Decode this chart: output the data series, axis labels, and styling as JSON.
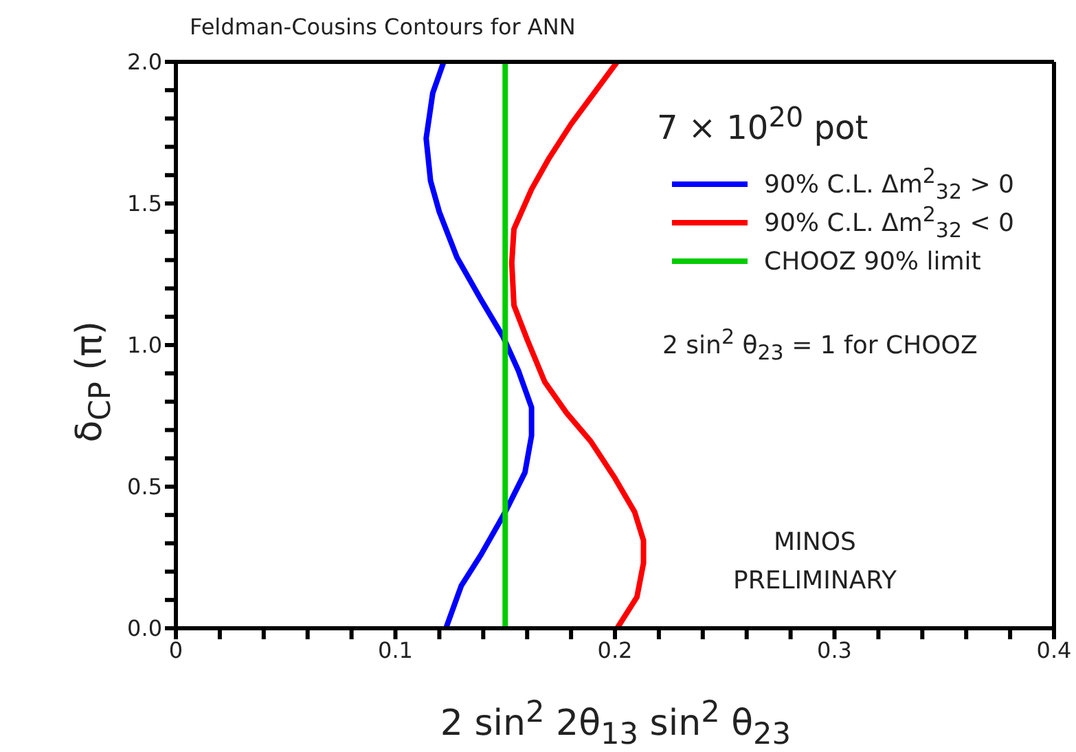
{
  "chart_data": {
    "type": "line",
    "title": "Feldman-Cousins Contours for ANN",
    "xlabel": "2 sin$^{2}$ 2θ$_{13}$ sin$^{2}$ θ$_{23}$",
    "ylabel": "δ$_{CP}$ (π)",
    "xlim": [
      0,
      0.4
    ],
    "ylim": [
      0,
      2
    ],
    "xticks": [
      {
        "value": 0,
        "label": "0"
      },
      {
        "value": 0.02,
        "label": null
      },
      {
        "value": 0.04,
        "label": null
      },
      {
        "value": 0.06,
        "label": null
      },
      {
        "value": 0.08,
        "label": null
      },
      0.1,
      {
        "value": 0.12,
        "label": null
      },
      {
        "value": 0.14,
        "label": null
      },
      {
        "value": 0.16,
        "label": null
      },
      {
        "value": 0.18,
        "label": null
      },
      0.2,
      {
        "value": 0.22,
        "label": null
      },
      {
        "value": 0.24,
        "label": null
      },
      {
        "value": 0.26,
        "label": null
      },
      {
        "value": 0.28,
        "label": null
      },
      0.3,
      {
        "value": 0.32,
        "label": null
      },
      {
        "value": 0.34,
        "label": null
      },
      {
        "value": 0.36,
        "label": null
      },
      {
        "value": 0.38,
        "label": null
      },
      0.4
    ],
    "yticks": [
      {
        "value": 0,
        "label": "0.0"
      },
      {
        "value": 0.1,
        "label": null
      },
      {
        "value": 0.2,
        "label": null
      },
      {
        "value": 0.3,
        "label": null
      },
      {
        "value": 0.4,
        "label": null
      },
      0.5,
      {
        "value": 0.6,
        "label": null
      },
      {
        "value": 0.7,
        "label": null
      },
      {
        "value": 0.8,
        "label": null
      },
      {
        "value": 0.9,
        "label": null
      },
      {
        "value": 1,
        "label": "1.0"
      },
      {
        "value": 1.1,
        "label": null
      },
      {
        "value": 1.2,
        "label": null
      },
      {
        "value": 1.3,
        "label": null
      },
      {
        "value": 1.4,
        "label": null
      },
      1.5,
      {
        "value": 1.6,
        "label": null
      },
      {
        "value": 1.7,
        "label": null
      },
      {
        "value": 1.8,
        "label": null
      },
      {
        "value": 1.9,
        "label": null
      },
      {
        "value": 2,
        "label": "2.0"
      }
    ],
    "legend": "top right",
    "line_style": "solid",
    "marker": "none",
    "series": [
      {
        "name": "90% C.L. Δm$^{2}$$_{32}$ > 0",
        "color": "#0000ff",
        "x": [
          0.122,
          0.117,
          0.114,
          0.116,
          0.12,
          0.128,
          0.139,
          0.149,
          0.156,
          0.162,
          0.162,
          0.159,
          0.15,
          0.139,
          0.13,
          0.123
        ],
        "values": [
          2,
          1.89,
          1.73,
          1.58,
          1.47,
          1.31,
          1.16,
          1.03,
          0.91,
          0.78,
          0.68,
          0.55,
          0.41,
          0.26,
          0.15,
          0
        ]
      },
      {
        "name": "90% C.L. Δm$^{2}$$_{32}$ < 0",
        "color": "#ff0000",
        "x": [
          0.201,
          0.18,
          0.17,
          0.162,
          0.154,
          0.153,
          0.154,
          0.16,
          0.168,
          0.178,
          0.189,
          0.2,
          0.209,
          0.213,
          0.213,
          0.21,
          0.201
        ],
        "values": [
          2,
          1.78,
          1.66,
          1.55,
          1.41,
          1.29,
          1.14,
          1.02,
          0.87,
          0.76,
          0.66,
          0.53,
          0.41,
          0.31,
          0.23,
          0.11,
          0
        ]
      },
      {
        "name": "CHOOZ 90% limit",
        "color": "#00cc00",
        "x": [
          0.15,
          0.15
        ],
        "values": [
          0,
          2
        ]
      }
    ],
    "annotations": [
      "7 × 10$^{20}$ pot",
      "2 sin$^{2}$ θ$_{23}$ = 1 for CHOOZ",
      "MINOS\nPRELIMINARY"
    ]
  }
}
